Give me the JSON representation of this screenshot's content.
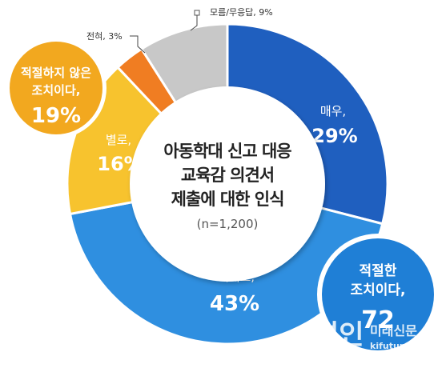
{
  "chart_data": {
    "type": "pie",
    "title": "아동학대 신고 대응 교육감 의견서 제출에 대한 인식",
    "title_lines": [
      "아동학대 신고 대응",
      "교육감 의견서",
      "제출에 대한 인식"
    ],
    "subtitle": "(n=1,200)",
    "slices": [
      {
        "label": "매우,",
        "value": 29,
        "value_text": "29%",
        "color": "#1f5fbf"
      },
      {
        "label": "대체로,",
        "value": 43,
        "value_text": "43%",
        "color": "#2f8fe0"
      },
      {
        "label": "별로,",
        "value": 16,
        "value_text": "16%",
        "color": "#f7c32e"
      },
      {
        "label": "전혀, 3%",
        "value": 3,
        "value_text": "3%",
        "color": "#f07d22"
      },
      {
        "label": "모름/무응답, 9%",
        "value": 9,
        "value_text": "9%",
        "color": "#c8c8c8"
      }
    ],
    "callouts": [
      {
        "lines": [
          "적절하지 않은",
          "조치이다,"
        ],
        "value_text": "19%",
        "color": "#f2a81f"
      },
      {
        "lines": [
          "적절한",
          "조치이다,"
        ],
        "value_text": "72",
        "color": "#1f7fd6"
      }
    ]
  },
  "watermark": {
    "brand": "경인",
    "brand2": "미래신문",
    "url": "kifuture.com"
  }
}
